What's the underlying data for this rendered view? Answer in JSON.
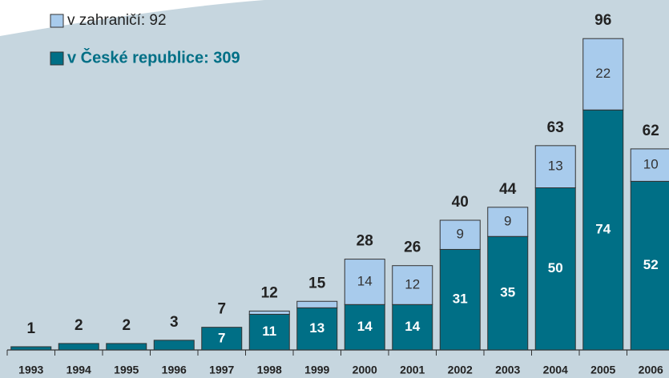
{
  "chart_data": {
    "type": "stacked-bar",
    "categories": [
      "1993",
      "1994",
      "1995",
      "1996",
      "1997",
      "1998",
      "1999",
      "2000",
      "2001",
      "2002",
      "2003",
      "2004",
      "2005",
      "2006"
    ],
    "series": [
      {
        "name": "v České republice: 309",
        "color": "#006f86",
        "values": [
          1,
          2,
          2,
          3,
          7,
          11,
          13,
          14,
          14,
          31,
          35,
          50,
          74,
          52
        ]
      },
      {
        "name": "v zahraničí: 92",
        "color": "#a8cbec",
        "values": [
          0,
          0,
          0,
          0,
          0,
          1,
          2,
          14,
          12,
          9,
          9,
          13,
          22,
          10
        ]
      }
    ],
    "totals": [
      1,
      2,
      2,
      3,
      7,
      12,
      15,
      28,
      26,
      40,
      44,
      63,
      96,
      62
    ]
  }
}
